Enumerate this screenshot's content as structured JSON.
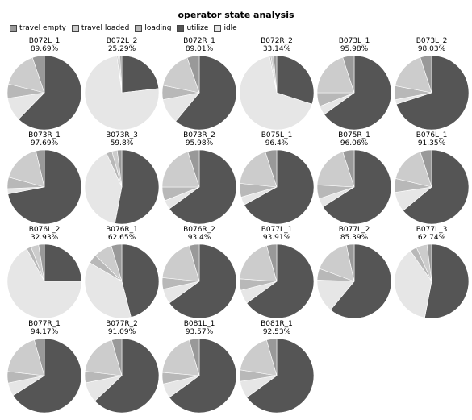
{
  "chart_data": {
    "type": "pie",
    "title": "operator state analysis",
    "legend": {
      "placement": "top-left",
      "entries": [
        {
          "name": "travel empty",
          "color": "#999999"
        },
        {
          "name": "travel loaded",
          "color": "#cccccc"
        },
        {
          "name": "loading",
          "color": "#b8b8b8"
        },
        {
          "name": "utilize",
          "color": "#555555"
        },
        {
          "name": "idle",
          "color": "#e6e6e6"
        }
      ]
    },
    "slice_order": [
      "utilize",
      "idle",
      "loading",
      "travel loaded",
      "travel empty"
    ],
    "pies": [
      {
        "name": "B072L_1",
        "utilization": "89.69%",
        "values": {
          "utilize": 0.623,
          "idle": 0.103,
          "loading": 0.062,
          "travel loaded": 0.16,
          "travel empty": 0.052
        }
      },
      {
        "name": "B072L_2",
        "utilization": "25.29%",
        "values": {
          "utilize": 0.232,
          "idle": 0.747,
          "loading": 0.005,
          "travel loaded": 0.008,
          "travel empty": 0.008
        }
      },
      {
        "name": "B072R_1",
        "utilization": "89.01%",
        "values": {
          "utilize": 0.61,
          "idle": 0.11,
          "loading": 0.062,
          "travel loaded": 0.165,
          "travel empty": 0.053
        }
      },
      {
        "name": "B072R_2",
        "utilization": "33.14%",
        "values": {
          "utilize": 0.3,
          "idle": 0.669,
          "loading": 0.006,
          "travel loaded": 0.011,
          "travel empty": 0.014
        }
      },
      {
        "name": "B073L_1",
        "utilization": "95.98%",
        "values": {
          "utilize": 0.65,
          "idle": 0.04,
          "loading": 0.06,
          "travel loaded": 0.2,
          "travel empty": 0.05
        }
      },
      {
        "name": "B073L_2",
        "utilization": "98.03%",
        "values": {
          "utilize": 0.7,
          "idle": 0.02,
          "loading": 0.06,
          "travel loaded": 0.17,
          "travel empty": 0.05
        }
      },
      {
        "name": "B073R_1",
        "utilization": "97.69%",
        "values": {
          "utilize": 0.72,
          "idle": 0.023,
          "loading": 0.05,
          "travel loaded": 0.17,
          "travel empty": 0.037
        }
      },
      {
        "name": "B073R_3",
        "utilization": "59.8%",
        "values": {
          "utilize": 0.53,
          "idle": 0.402,
          "loading": 0.025,
          "travel loaded": 0.023,
          "travel empty": 0.02
        }
      },
      {
        "name": "B073R_2",
        "utilization": "95.98%",
        "values": {
          "utilize": 0.65,
          "idle": 0.04,
          "loading": 0.06,
          "travel loaded": 0.2,
          "travel empty": 0.05
        }
      },
      {
        "name": "B075L_1",
        "utilization": "96.4%",
        "values": {
          "utilize": 0.67,
          "idle": 0.036,
          "loading": 0.06,
          "travel loaded": 0.184,
          "travel empty": 0.05
        }
      },
      {
        "name": "B075R_1",
        "utilization": "96.06%",
        "values": {
          "utilize": 0.66,
          "idle": 0.039,
          "loading": 0.06,
          "travel loaded": 0.191,
          "travel empty": 0.05
        }
      },
      {
        "name": "B076L_1",
        "utilization": "91.35%",
        "values": {
          "utilize": 0.64,
          "idle": 0.087,
          "loading": 0.06,
          "travel loaded": 0.163,
          "travel empty": 0.05
        }
      },
      {
        "name": "B076L_2",
        "utilization": "32.93%",
        "values": {
          "utilize": 0.25,
          "idle": 0.671,
          "loading": 0.02,
          "travel loaded": 0.034,
          "travel empty": 0.025
        }
      },
      {
        "name": "B076R_1",
        "utilization": "62.65%",
        "values": {
          "utilize": 0.46,
          "idle": 0.374,
          "loading": 0.04,
          "travel loaded": 0.08,
          "travel empty": 0.046
        }
      },
      {
        "name": "B076R_2",
        "utilization": "93.4%",
        "values": {
          "utilize": 0.65,
          "idle": 0.066,
          "loading": 0.05,
          "travel loaded": 0.19,
          "travel empty": 0.044
        }
      },
      {
        "name": "B077L_1",
        "utilization": "93.91%",
        "values": {
          "utilize": 0.65,
          "idle": 0.061,
          "loading": 0.05,
          "travel loaded": 0.195,
          "travel empty": 0.044
        }
      },
      {
        "name": "B077L_2",
        "utilization": "85.39%",
        "values": {
          "utilize": 0.61,
          "idle": 0.146,
          "loading": 0.05,
          "travel loaded": 0.16,
          "travel empty": 0.034
        }
      },
      {
        "name": "B077L_3",
        "utilization": "62.74%",
        "values": {
          "utilize": 0.53,
          "idle": 0.373,
          "loading": 0.03,
          "travel loaded": 0.047,
          "travel empty": 0.02
        }
      },
      {
        "name": "B077R_1",
        "utilization": "94.17%",
        "values": {
          "utilize": 0.66,
          "idle": 0.058,
          "loading": 0.05,
          "travel loaded": 0.188,
          "travel empty": 0.044
        }
      },
      {
        "name": "B077R_2",
        "utilization": "91.09%",
        "values": {
          "utilize": 0.63,
          "idle": 0.089,
          "loading": 0.05,
          "travel loaded": 0.187,
          "travel empty": 0.044
        }
      },
      {
        "name": "B081L_1",
        "utilization": "93.57%",
        "values": {
          "utilize": 0.65,
          "idle": 0.064,
          "loading": 0.05,
          "travel loaded": 0.192,
          "travel empty": 0.044
        }
      },
      {
        "name": "B081R_1",
        "utilization": "92.53%",
        "values": {
          "utilize": 0.65,
          "idle": 0.075,
          "loading": 0.05,
          "travel loaded": 0.181,
          "travel empty": 0.044
        }
      }
    ]
  }
}
